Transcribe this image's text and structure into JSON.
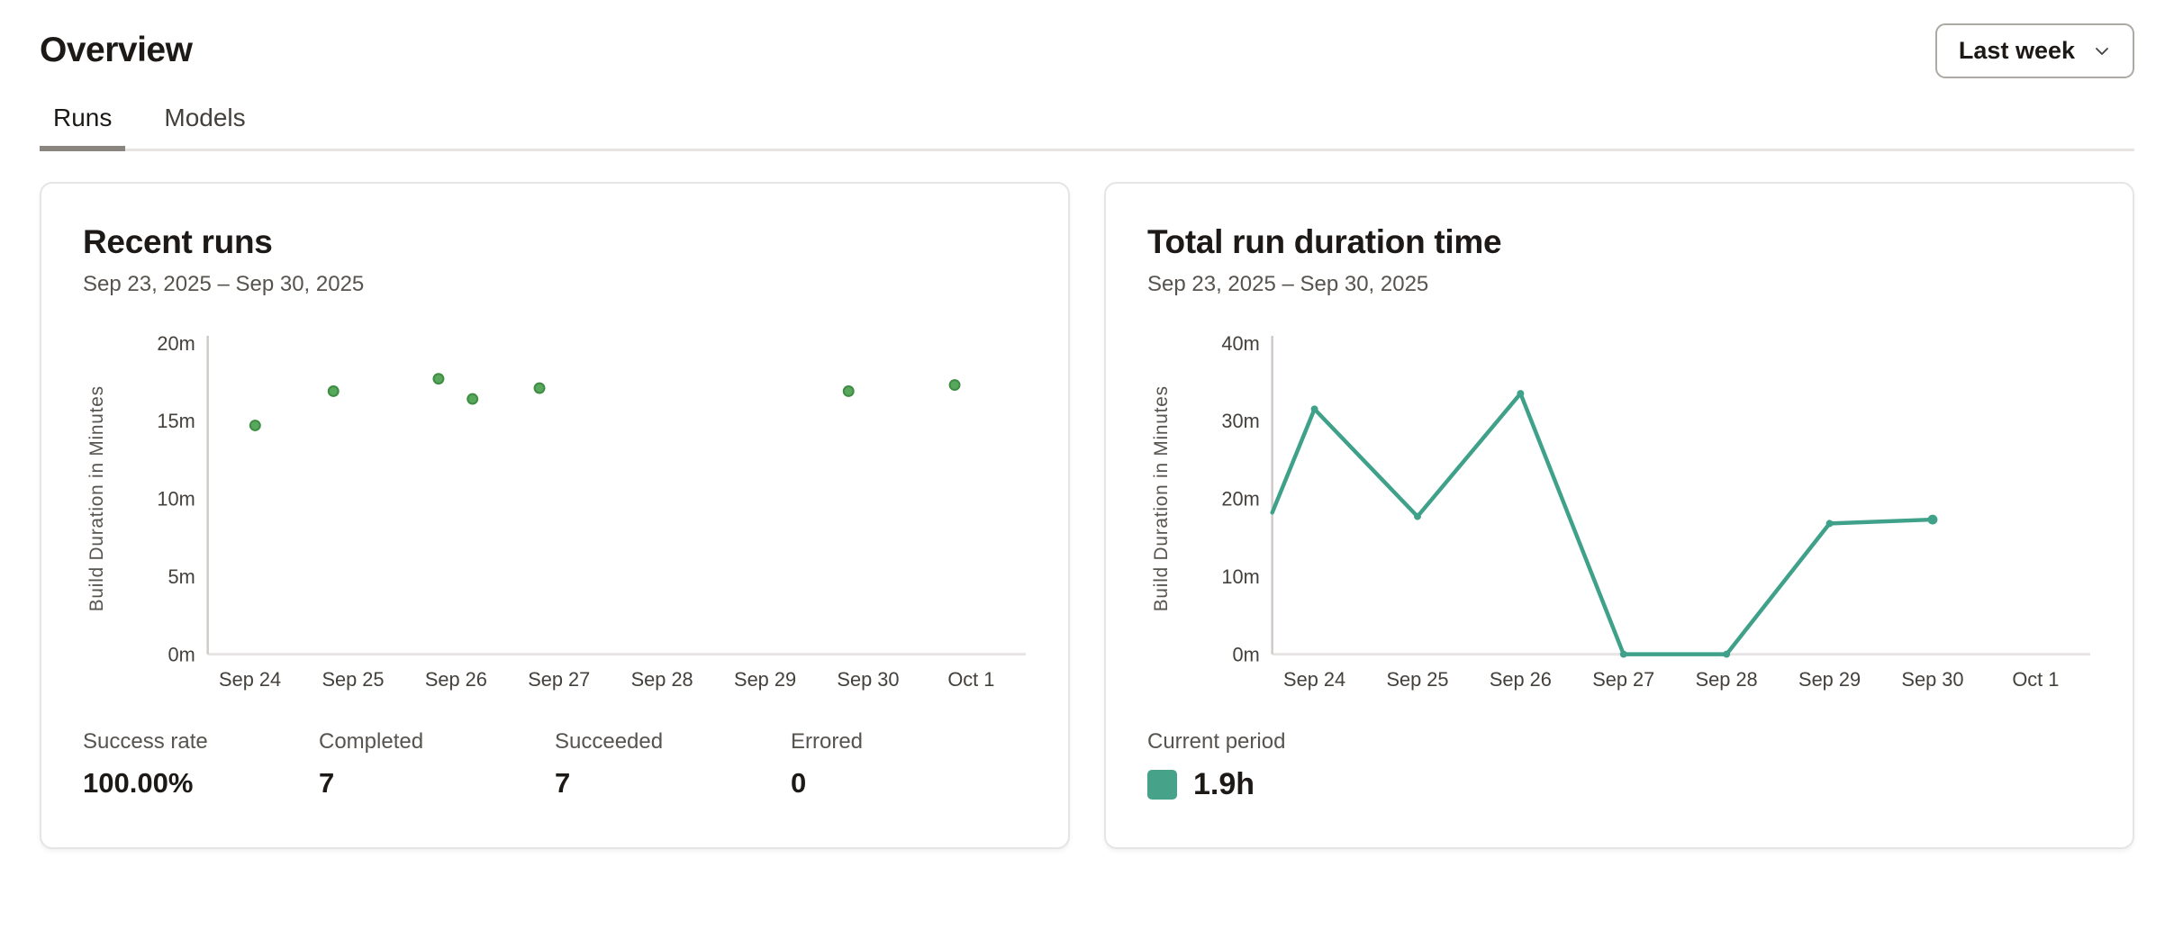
{
  "page": {
    "title": "Overview"
  },
  "header": {
    "range_selector": {
      "value": "Last week",
      "icon": "chevron-down-icon"
    }
  },
  "tabs": [
    {
      "label": "Runs",
      "active": true
    },
    {
      "label": "Models",
      "active": false
    }
  ],
  "cards": [
    {
      "title": "Recent runs",
      "subtitle": "Sep 23, 2025 – Sep 30, 2025",
      "stats": [
        {
          "label": "Success rate",
          "value": "100.00%"
        },
        {
          "label": "Completed",
          "value": "7"
        },
        {
          "label": "Succeeded",
          "value": "7"
        },
        {
          "label": "Errored",
          "value": "0"
        }
      ]
    },
    {
      "title": "Total run duration time",
      "subtitle": "Sep 23, 2025 – Sep 30, 2025",
      "legend": {
        "label": "Current period",
        "value": "1.9h",
        "swatch_color": "#47A28A"
      }
    }
  ],
  "chart_data": [
    {
      "type": "scatter",
      "title": "Recent runs",
      "ylabel": "Build Duration in Minutes",
      "y_max": 20,
      "y_ticks": [
        {
          "value": 0,
          "label": "0m"
        },
        {
          "value": 5,
          "label": "5m"
        },
        {
          "value": 10,
          "label": "10m"
        },
        {
          "value": 15,
          "label": "15m"
        },
        {
          "value": 20,
          "label": "20m"
        }
      ],
      "x_domain_days": [
        0.59,
        8.53
      ],
      "x_ticks": [
        {
          "day": 1,
          "label": "Sep 24"
        },
        {
          "day": 2,
          "label": "Sep 25"
        },
        {
          "day": 3,
          "label": "Sep 26"
        },
        {
          "day": 4,
          "label": "Sep 27"
        },
        {
          "day": 5,
          "label": "Sep 28"
        },
        {
          "day": 6,
          "label": "Sep 29"
        },
        {
          "day": 7,
          "label": "Sep 30"
        },
        {
          "day": 8,
          "label": "Oct 1"
        }
      ],
      "point_fill": "#57A85C",
      "point_stroke": "#3D8C41",
      "points": [
        {
          "day": 1.05,
          "minutes": 14.7
        },
        {
          "day": 1.81,
          "minutes": 16.9
        },
        {
          "day": 2.83,
          "minutes": 17.7
        },
        {
          "day": 3.16,
          "minutes": 16.4
        },
        {
          "day": 3.81,
          "minutes": 17.1
        },
        {
          "day": 6.81,
          "minutes": 16.9
        },
        {
          "day": 7.84,
          "minutes": 17.3
        }
      ],
      "grid": false
    },
    {
      "type": "line",
      "title": "Total run duration time",
      "ylabel": "Build Duration in Minutes",
      "y_max": 40,
      "y_ticks": [
        {
          "value": 0,
          "label": "0m"
        },
        {
          "value": 10,
          "label": "10m"
        },
        {
          "value": 20,
          "label": "20m"
        },
        {
          "value": 30,
          "label": "30m"
        },
        {
          "value": 40,
          "label": "40m"
        }
      ],
      "x_domain_days": [
        0.59,
        8.53
      ],
      "x_ticks": [
        {
          "day": 1,
          "label": "Sep 24"
        },
        {
          "day": 2,
          "label": "Sep 25"
        },
        {
          "day": 3,
          "label": "Sep 26"
        },
        {
          "day": 4,
          "label": "Sep 27"
        },
        {
          "day": 5,
          "label": "Sep 28"
        },
        {
          "day": 6,
          "label": "Sep 29"
        },
        {
          "day": 7,
          "label": "Sep 30"
        },
        {
          "day": 8,
          "label": "Oct 1"
        }
      ],
      "series": [
        {
          "name": "Current period",
          "color": "#3FA189",
          "points": [
            {
              "day": 0.59,
              "minutes": 18.2,
              "marker": false
            },
            {
              "day": 1,
              "minutes": 31.5,
              "marker": true
            },
            {
              "day": 2,
              "minutes": 17.7,
              "marker": true
            },
            {
              "day": 3,
              "minutes": 33.5,
              "marker": true
            },
            {
              "day": 4,
              "minutes": 0,
              "marker": true
            },
            {
              "day": 5,
              "minutes": 0,
              "marker": true
            },
            {
              "day": 6,
              "minutes": 16.8,
              "marker": true
            },
            {
              "day": 7,
              "minutes": 17.3,
              "marker": true
            }
          ]
        }
      ],
      "grid": false
    }
  ]
}
